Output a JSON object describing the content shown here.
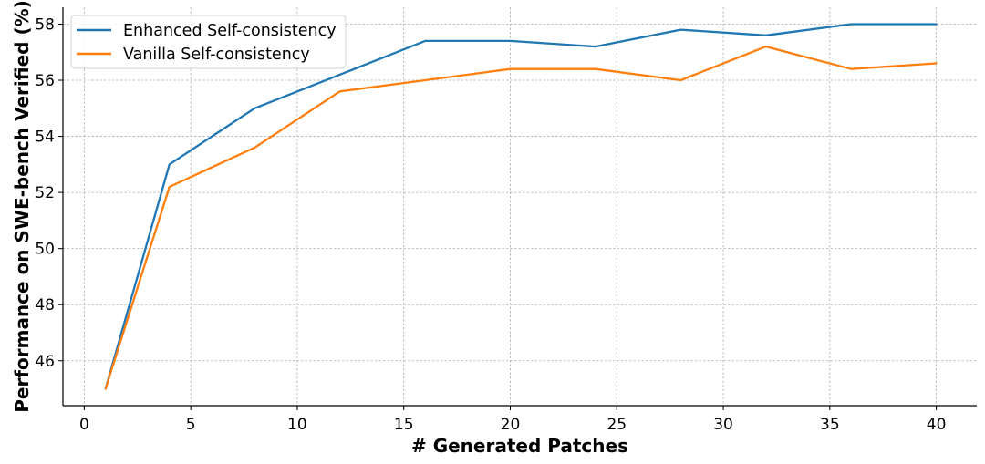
{
  "chart_data": {
    "type": "line",
    "title": "",
    "xlabel": "# Generated Patches",
    "ylabel": "Performance on SWE-bench Verified (%)",
    "xlim": [
      -1,
      41.9
    ],
    "ylim": [
      44.4,
      58.6
    ],
    "xticks": [
      0,
      5,
      10,
      15,
      20,
      25,
      30,
      35,
      40
    ],
    "yticks": [
      46,
      48,
      50,
      52,
      54,
      56,
      58
    ],
    "grid": true,
    "legend_position": "top-left",
    "series": [
      {
        "name": "Enhanced Self-consistency",
        "color": "#1f77b4",
        "x": [
          1,
          4,
          8,
          12,
          16,
          20,
          24,
          28,
          32,
          36,
          40
        ],
        "y": [
          45.0,
          53.0,
          55.0,
          56.2,
          57.4,
          57.4,
          57.2,
          57.8,
          57.6,
          58.0,
          58.0
        ]
      },
      {
        "name": "Vanilla Self-consistency",
        "color": "#ff7f0e",
        "x": [
          1,
          4,
          8,
          12,
          16,
          20,
          24,
          28,
          32,
          36,
          40
        ],
        "y": [
          45.0,
          52.2,
          53.6,
          55.6,
          56.0,
          56.4,
          56.4,
          56.0,
          57.2,
          56.4,
          56.6
        ]
      }
    ]
  }
}
